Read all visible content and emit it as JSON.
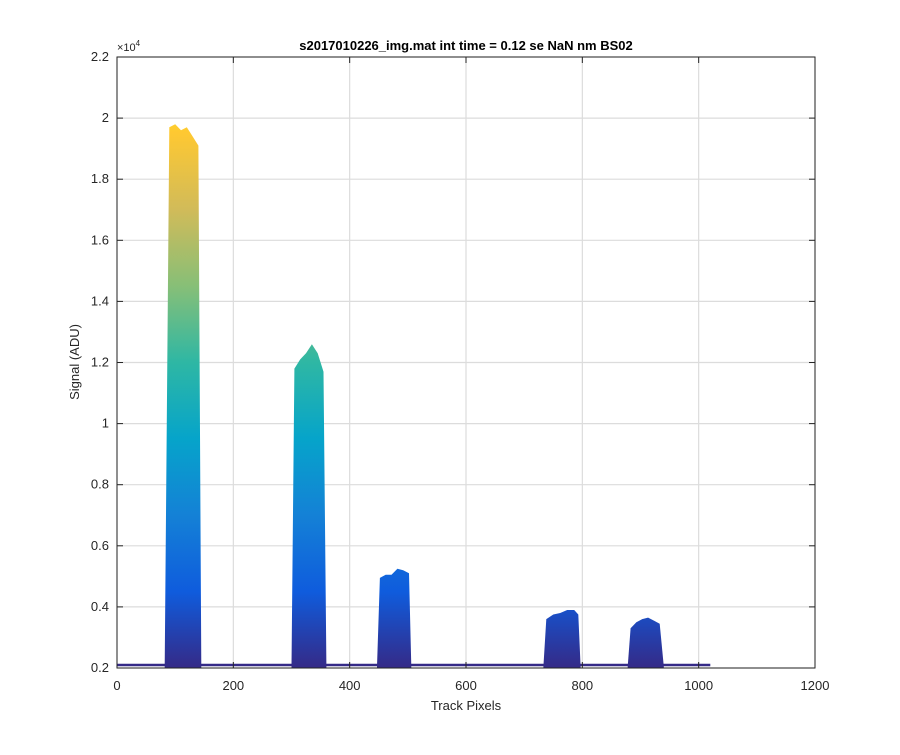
{
  "chart_data": {
    "type": "area",
    "title": "s2017010226_img.mat int time = 0.12 se  NaN nm BS02",
    "xlabel": "Track Pixels",
    "ylabel": "Signal (ADU)",
    "y_exponent_label": "×10",
    "y_exponent_power": "4",
    "xlim": [
      0,
      1200
    ],
    "ylim": [
      2000,
      22000
    ],
    "xticks": [
      0,
      200,
      400,
      600,
      800,
      1000,
      1200
    ],
    "xtick_labels": [
      "0",
      "200",
      "400",
      "600",
      "800",
      "1000",
      "1200"
    ],
    "yticks": [
      2000,
      4000,
      6000,
      8000,
      10000,
      12000,
      14000,
      16000,
      18000,
      20000,
      22000
    ],
    "ytick_labels": [
      "0.2",
      "0.4",
      "0.6",
      "0.8",
      "1",
      "1.2",
      "1.4",
      "1.6",
      "1.8",
      "2",
      "2.2"
    ],
    "grid": true,
    "colormap": [
      "#352a87",
      "#0f5cdd",
      "#1481d6",
      "#06a4ca",
      "#2eb7a4",
      "#87bf77",
      "#d1bb59",
      "#fec832",
      "#f9fb0e"
    ],
    "baseline": 2100,
    "x_data_end": 1020,
    "series": [
      {
        "x": [
          82,
          90,
          100,
          110,
          120,
          130,
          140,
          145
        ],
        "y": [
          2050,
          19700,
          19800,
          19600,
          19700,
          19400,
          19100,
          2050
        ]
      },
      {
        "x": [
          300,
          305,
          315,
          325,
          335,
          345,
          355,
          360
        ],
        "y": [
          2050,
          11800,
          12100,
          12300,
          12600,
          12300,
          11700,
          2050
        ]
      },
      {
        "x": [
          447,
          452,
          462,
          472,
          482,
          492,
          502,
          506
        ],
        "y": [
          2050,
          4950,
          5050,
          5050,
          5250,
          5200,
          5100,
          2050
        ]
      },
      {
        "x": [
          733,
          738,
          750,
          762,
          774,
          786,
          793,
          797
        ],
        "y": [
          2050,
          3600,
          3750,
          3800,
          3900,
          3900,
          3750,
          2050
        ]
      },
      {
        "x": [
          878,
          883,
          893,
          903,
          913,
          923,
          933,
          940
        ],
        "y": [
          2050,
          3300,
          3500,
          3600,
          3650,
          3550,
          3450,
          2050
        ]
      }
    ]
  }
}
